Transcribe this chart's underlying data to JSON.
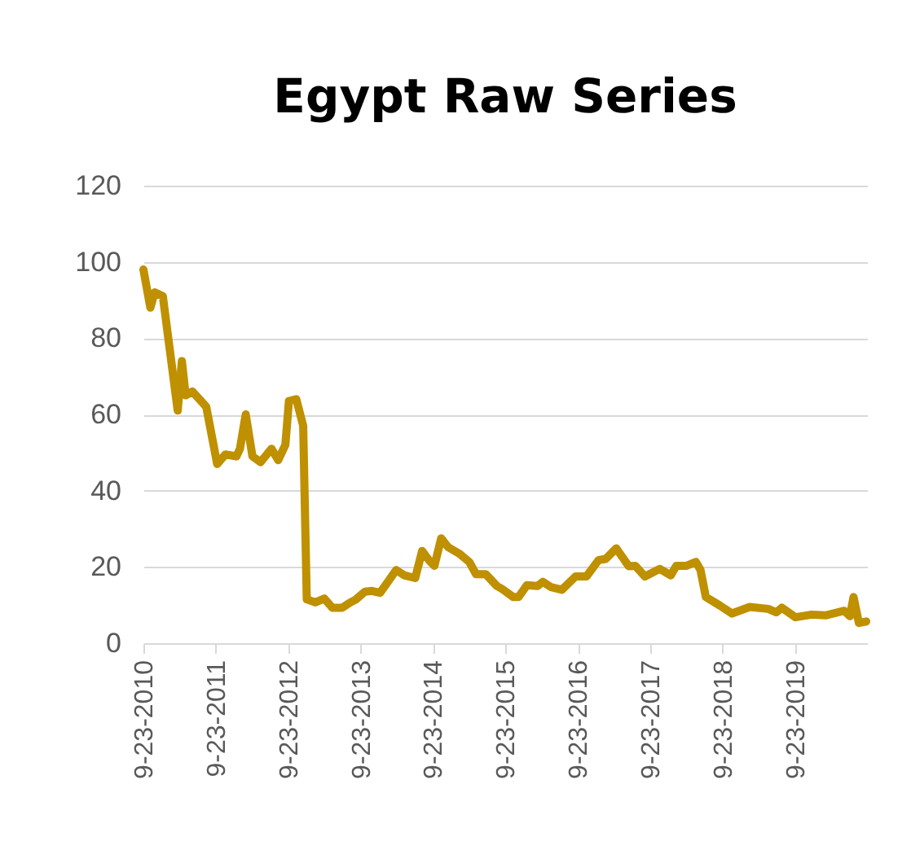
{
  "chart_data": {
    "type": "line",
    "title": "Egypt Raw Series",
    "x": [
      "2010-09-23",
      "2010-10-28",
      "2010-11-19",
      "2010-12-30",
      "2011-03-15",
      "2011-04-05",
      "2011-04-24",
      "2011-05-28",
      "2011-08-06",
      "2011-09-30",
      "2011-11-10",
      "2012-01-05",
      "2012-01-23",
      "2012-02-21",
      "2012-03-26",
      "2012-05-06",
      "2012-06-30",
      "2012-08-03",
      "2012-09-08",
      "2012-09-26",
      "2012-11-02",
      "2012-12-07",
      "2012-12-25",
      "2013-02-06",
      "2013-03-24",
      "2013-05-03",
      "2013-06-21",
      "2013-08-02",
      "2013-08-28",
      "2013-10-14",
      "2013-11-19",
      "2013-12-30",
      "2014-03-21",
      "2014-05-01",
      "2014-06-25",
      "2014-07-30",
      "2014-09-02",
      "2014-09-30",
      "2014-11-03",
      "2014-12-08",
      "2015-02-02",
      "2015-03-25",
      "2015-04-28",
      "2015-06-16",
      "2015-08-11",
      "2015-09-07",
      "2015-11-02",
      "2015-11-28",
      "2016-01-09",
      "2016-03-03",
      "2016-03-30",
      "2016-05-10",
      "2016-07-04",
      "2016-09-11",
      "2016-11-05",
      "2017-01-05",
      "2017-02-10",
      "2017-04-04",
      "2017-06-06",
      "2017-07-09",
      "2017-08-27",
      "2017-11-10",
      "2018-01-04",
      "2018-02-01",
      "2018-03-25",
      "2018-05-11",
      "2018-06-03",
      "2018-06-30",
      "2018-09-08",
      "2018-11-09",
      "2019-02-06",
      "2019-05-11",
      "2019-06-21",
      "2019-07-18",
      "2019-09-25",
      "2019-12-16",
      "2020-02-24",
      "2020-05-28",
      "2020-06-26",
      "2020-07-14",
      "2020-08-10",
      "2020-09-16"
    ],
    "series": [
      {
        "color": "#bf9000",
        "values": [
          98,
          88,
          92,
          91,
          61,
          74,
          65,
          66,
          62,
          47,
          49.5,
          49,
          51,
          60,
          49,
          47.5,
          51,
          48,
          52,
          63.5,
          64,
          57,
          11.5,
          10.7,
          11.7,
          9.3,
          9.3,
          10.7,
          11.4,
          13.5,
          13.7,
          13.2,
          19.2,
          17.8,
          17.1,
          24.2,
          21.8,
          20.3,
          27.5,
          25.2,
          23.5,
          21.3,
          18.1,
          18.1,
          15,
          14.2,
          12.1,
          12.1,
          15.2,
          15,
          16.1,
          14.7,
          14,
          17.5,
          17.5,
          21.8,
          22.1,
          24.9,
          20.2,
          20.3,
          17.5,
          19.5,
          17.8,
          20.3,
          20.3,
          21.3,
          19.2,
          12.1,
          9.9,
          7.8,
          9.5,
          9,
          8.1,
          9.3,
          6.8,
          7.5,
          7.3,
          8.5,
          7.1,
          12.1,
          5.3,
          5.7
        ]
      }
    ],
    "xlim": [
      "2010-09-23",
      "2020-09-20"
    ],
    "xticks": [
      {
        "value": "2010-09-23",
        "label": "9-23-2010"
      },
      {
        "value": "2011-09-23",
        "label": "9-23-2011"
      },
      {
        "value": "2012-09-23",
        "label": "9-23-2012"
      },
      {
        "value": "2013-09-23",
        "label": "9-23-2013"
      },
      {
        "value": "2014-09-23",
        "label": "9-23-2014"
      },
      {
        "value": "2015-09-23",
        "label": "9-23-2015"
      },
      {
        "value": "2016-09-23",
        "label": "9-23-2016"
      },
      {
        "value": "2017-09-23",
        "label": "9-23-2017"
      },
      {
        "value": "2018-09-23",
        "label": "9-23-2018"
      },
      {
        "value": "2019-09-23",
        "label": "9-23-2019"
      }
    ],
    "ylim": [
      0,
      120
    ],
    "yticks": [
      0,
      20,
      40,
      60,
      80,
      100,
      120
    ],
    "grid": "y",
    "marker": "none",
    "line_style": "solid"
  }
}
